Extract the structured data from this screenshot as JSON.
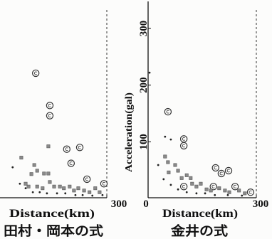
{
  "chart_data": [
    {
      "type": "scatter",
      "caption": "田村・岡本の式",
      "xlabel": "Distance(km)",
      "xlim": [
        0,
        300
      ],
      "ylim": [
        0,
        300
      ],
      "grid": false,
      "x_ticks": [
        {
          "value": 300,
          "label": "300"
        }
      ],
      "y_ticks": [],
      "series": [
        {
          "marker": "circle",
          "points": [
            [
              103,
              221
            ],
            [
              142,
              164
            ],
            [
              142,
              146
            ],
            [
              189,
              87
            ],
            [
              225,
              90
            ],
            [
              201,
              62
            ],
            [
              292,
              26
            ],
            [
              245,
              34
            ]
          ]
        },
        {
          "marker": "square",
          "points": [
            [
              138,
              92
            ],
            [
              63,
              72
            ],
            [
              99,
              59
            ],
            [
              91,
              43
            ],
            [
              107,
              49
            ],
            [
              126,
              44
            ],
            [
              138,
              44
            ],
            [
              142,
              29
            ],
            [
              154,
              21
            ],
            [
              170,
              21
            ],
            [
              181,
              18
            ],
            [
              197,
              21
            ],
            [
              209,
              14
            ],
            [
              221,
              18
            ],
            [
              237,
              14
            ],
            [
              252,
              11
            ],
            [
              268,
              18
            ],
            [
              280,
              11
            ],
            [
              122,
              18
            ],
            [
              107,
              21
            ],
            [
              83,
              21
            ],
            [
              75,
              26
            ]
          ]
        },
        {
          "marker": "dot",
          "points": [
            [
              39,
              55
            ],
            [
              59,
              26
            ],
            [
              75,
              18
            ],
            [
              95,
              11
            ],
            [
              114,
              11
            ],
            [
              134,
              9
            ],
            [
              162,
              9
            ],
            [
              185,
              9
            ],
            [
              213,
              6
            ],
            [
              233,
              6
            ],
            [
              260,
              5
            ],
            [
              288,
              6
            ]
          ]
        }
      ]
    },
    {
      "type": "scatter",
      "caption": "金井の式",
      "xlabel": "Distance(km)",
      "ylabel": "Acceleration(gal)",
      "xlim": [
        0,
        300
      ],
      "ylim": [
        0,
        300
      ],
      "grid": false,
      "x_ticks": [
        {
          "value": 0,
          "label": "0"
        },
        {
          "value": 300,
          "label": "300"
        }
      ],
      "y_ticks": [
        {
          "value": 100,
          "label": "100"
        },
        {
          "value": 200,
          "label": "200"
        },
        {
          "value": 300,
          "label": "300"
        }
      ],
      "series": [
        {
          "marker": "circle",
          "points": [
            [
              55,
              153
            ],
            [
              99,
              105
            ],
            [
              99,
              93
            ],
            [
              187,
              54
            ],
            [
              203,
              44
            ],
            [
              223,
              49
            ],
            [
              99,
              21
            ],
            [
              181,
              21
            ],
            [
              241,
              21
            ],
            [
              284,
              11
            ]
          ]
        },
        {
          "marker": "square",
          "points": [
            [
              47,
              74
            ],
            [
              55,
              64
            ],
            [
              57,
              46
            ],
            [
              75,
              59
            ],
            [
              83,
              49
            ],
            [
              93,
              36
            ],
            [
              107,
              41
            ],
            [
              118,
              36
            ],
            [
              122,
              26
            ],
            [
              134,
              21
            ],
            [
              146,
              26
            ],
            [
              162,
              16
            ],
            [
              174,
              14
            ],
            [
              197,
              18
            ],
            [
              213,
              14
            ],
            [
              225,
              11
            ],
            [
              252,
              14
            ],
            [
              268,
              9
            ]
          ]
        },
        {
          "marker": "dot",
          "points": [
            [
              4,
              222
            ],
            [
              47,
              109
            ],
            [
              63,
              104
            ],
            [
              28,
              59
            ],
            [
              43,
              34
            ],
            [
              63,
              24
            ],
            [
              83,
              16
            ],
            [
              107,
              11
            ],
            [
              134,
              9
            ],
            [
              158,
              9
            ],
            [
              185,
              6
            ],
            [
              221,
              6
            ],
            [
              260,
              5
            ]
          ]
        }
      ]
    }
  ]
}
